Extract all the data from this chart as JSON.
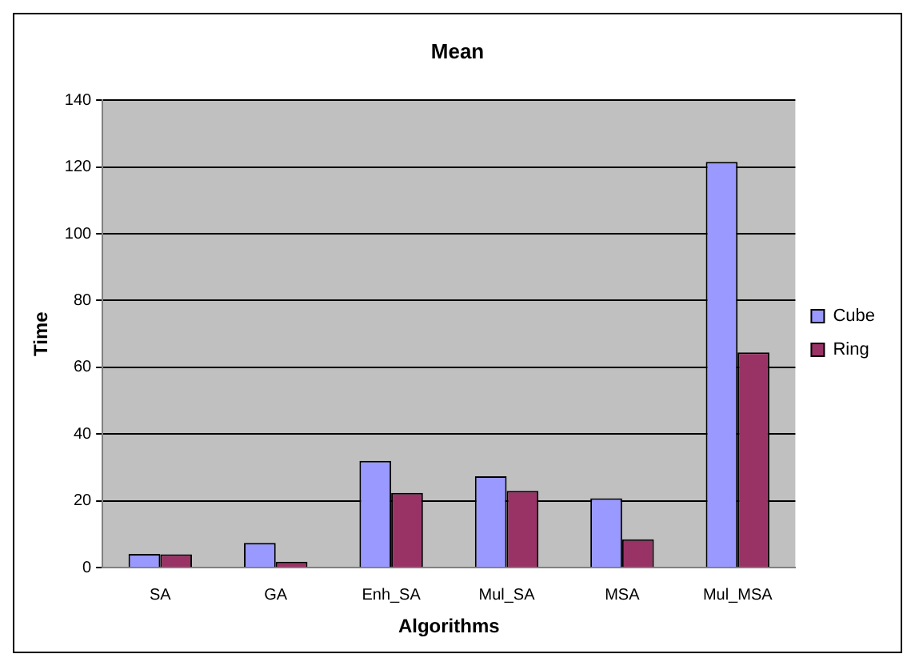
{
  "chart_data": {
    "type": "bar",
    "title": "Mean",
    "xlabel": "Algorithms",
    "ylabel": "Time",
    "categories": [
      "SA",
      "GA",
      "Enh_SA",
      "Mul_SA",
      "MSA",
      "Mul_MSA"
    ],
    "series": [
      {
        "name": "Cube",
        "color": "#9999ff",
        "values": [
          4.1,
          7.4,
          32,
          27.4,
          20.8,
          121.5
        ]
      },
      {
        "name": "Ring",
        "color": "#993366",
        "values": [
          4,
          1.8,
          22.4,
          23,
          8.5,
          64.5
        ]
      }
    ],
    "ylim": [
      0,
      140
    ],
    "yticks": [
      0,
      20,
      40,
      60,
      80,
      100,
      120,
      140
    ],
    "grid": "y",
    "legend": "right"
  }
}
